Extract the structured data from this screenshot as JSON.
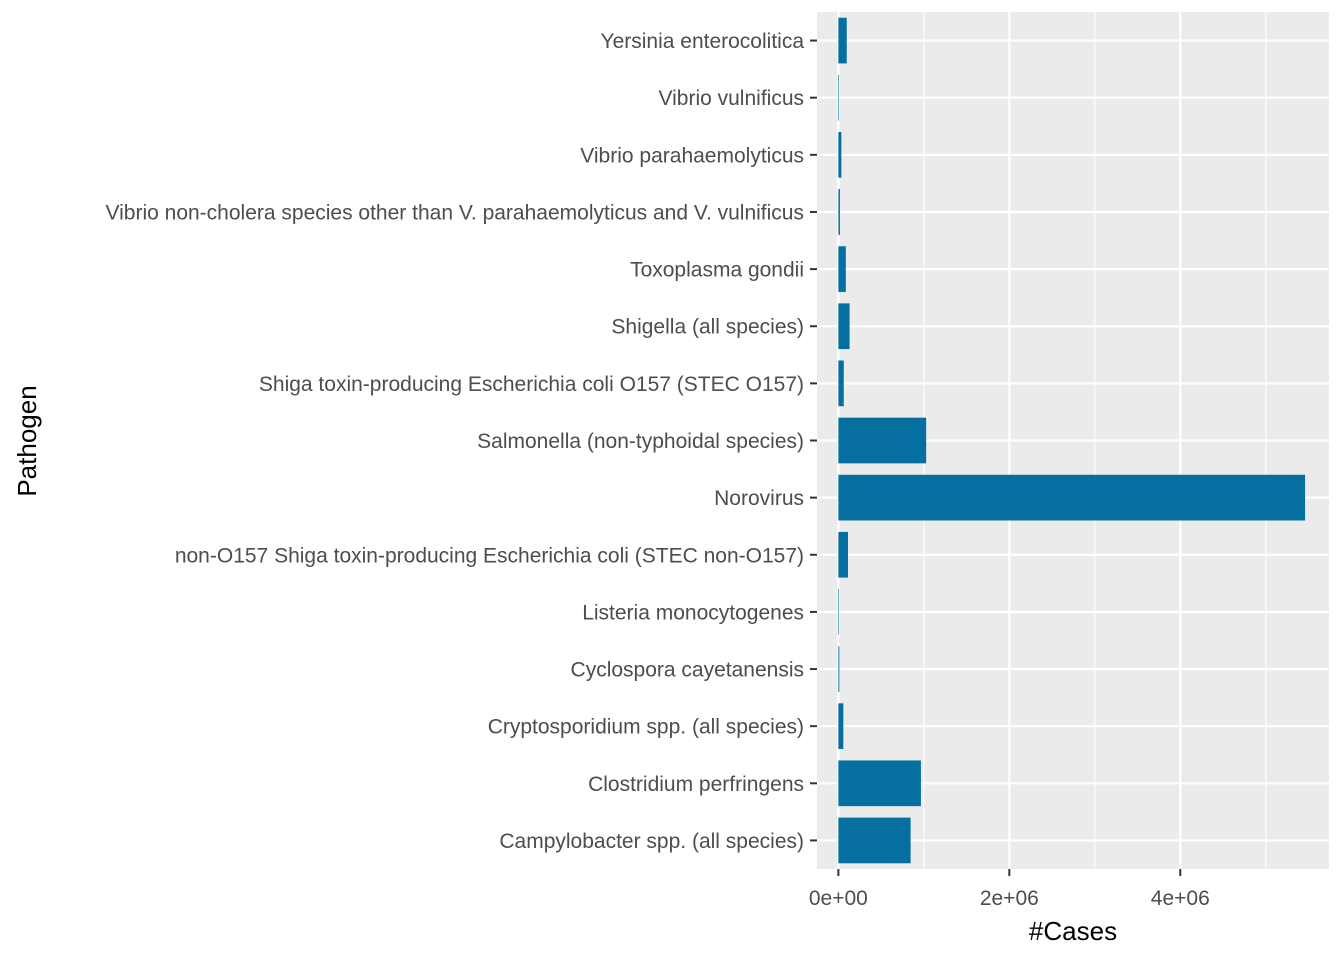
{
  "chart_data": {
    "type": "bar",
    "orientation": "horizontal",
    "xlabel": "#Cases",
    "ylabel": "Pathogen",
    "xlim": [
      -250000,
      5740000
    ],
    "x_ticks": [
      0,
      2000000,
      4000000
    ],
    "x_tick_labels": [
      "0e+00",
      "2e+06",
      "4e+06"
    ],
    "grid": true,
    "colors": {
      "bar": "#0570A0",
      "panel": "#EBEBEB",
      "grid": "#FFFFFF"
    },
    "categories": [
      "Yersinia enterocolitica",
      "Vibrio vulnificus",
      "Vibrio parahaemolyticus",
      "Vibrio non-cholera species other than V. parahaemolyticus and V. vulnificus",
      "Toxoplasma gondii",
      "Shigella (all species)",
      "Shiga toxin-producing Escherichia coli O157 (STEC O157)",
      "Salmonella (non-typhoidal species)",
      "Norovirus",
      "non-O157 Shiga toxin-producing Escherichia coli (STEC non-O157)",
      "Listeria monocytogenes",
      "Cyclospora cayetanensis",
      "Cryptosporidium spp. (all species)",
      "Clostridium perfringens",
      "Campylobacter spp. (all species)"
    ],
    "values": [
      98000,
      100,
      35000,
      18000,
      87000,
      131000,
      63000,
      1027000,
      5460000,
      113000,
      1600,
      11000,
      58000,
      966000,
      845000
    ]
  }
}
